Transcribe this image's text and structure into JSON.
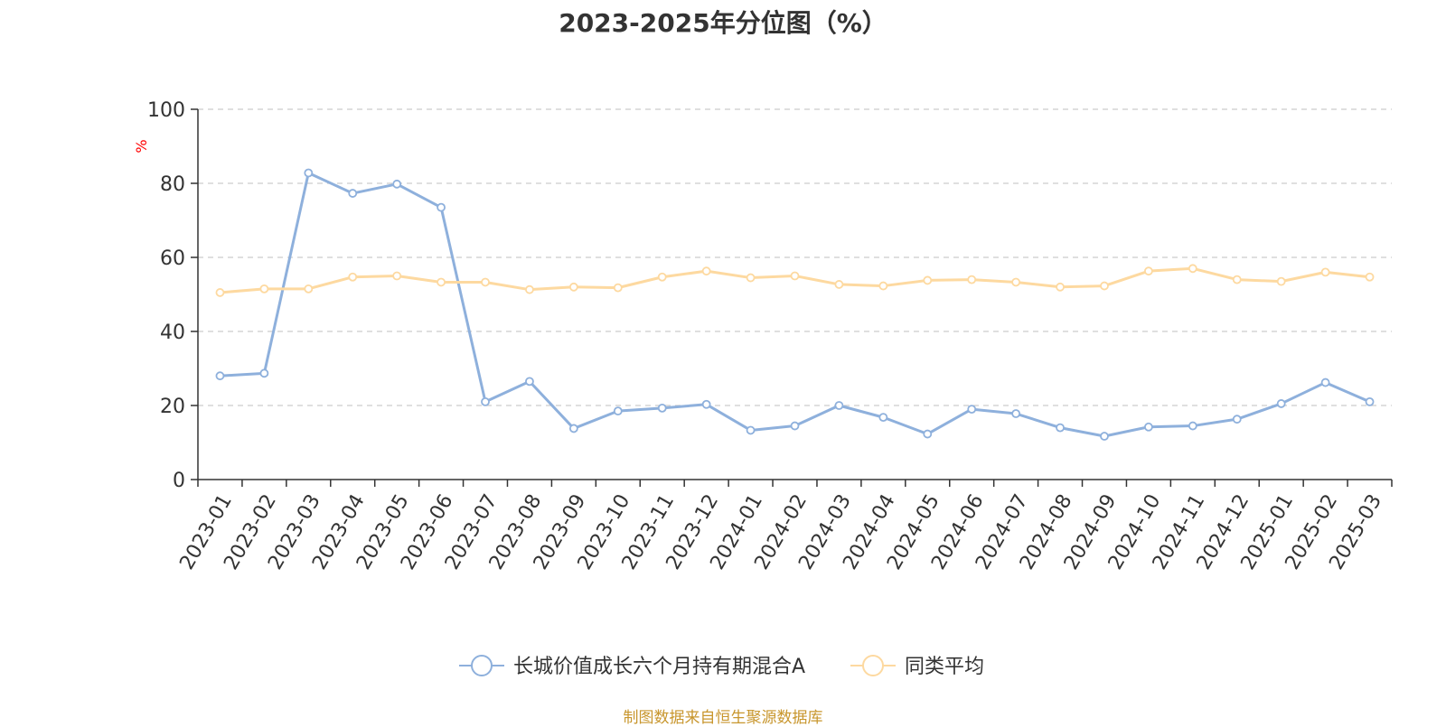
{
  "chart_title": "2023-2025年分位图（%）",
  "source_note": "制图数据来自恒生聚源数据库",
  "chart_data": {
    "type": "line",
    "title": "2023-2025年分位图（%）",
    "ylabel": "%",
    "ylabel_color": "#ff0000",
    "ylim": [
      0,
      100
    ],
    "y_ticks": [
      0,
      20,
      40,
      60,
      80,
      100
    ],
    "grid": "horizontal dashed",
    "legend_position": "bottom-center",
    "categories": [
      "2023-01",
      "2023-02",
      "2023-03",
      "2023-04",
      "2023-05",
      "2023-06",
      "2023-07",
      "2023-08",
      "2023-09",
      "2023-10",
      "2023-11",
      "2023-12",
      "2024-01",
      "2024-02",
      "2024-03",
      "2024-04",
      "2024-05",
      "2024-06",
      "2024-07",
      "2024-08",
      "2024-09",
      "2024-10",
      "2024-11",
      "2024-12",
      "2025-01",
      "2025-02",
      "2025-03"
    ],
    "series": [
      {
        "name": "长城价值成长六个月持有期混合A",
        "color": "#8eb0dc",
        "values": [
          28.0,
          28.7,
          82.8,
          77.3,
          79.8,
          73.5,
          21.0,
          26.5,
          13.8,
          18.5,
          19.3,
          20.3,
          13.3,
          14.5,
          20.0,
          16.8,
          12.3,
          19.0,
          17.8,
          14.0,
          11.7,
          14.2,
          14.5,
          16.3,
          20.5,
          26.2,
          21.0
        ]
      },
      {
        "name": "同类平均",
        "color": "#fdd9a0",
        "values": [
          50.5,
          51.5,
          51.5,
          54.7,
          55.0,
          53.3,
          53.3,
          51.3,
          52.0,
          51.8,
          54.7,
          56.3,
          54.5,
          55.0,
          52.7,
          52.3,
          53.8,
          54.0,
          53.3,
          52.0,
          52.3,
          56.3,
          57.0,
          54.0,
          53.5,
          56.0,
          54.7
        ]
      }
    ]
  }
}
